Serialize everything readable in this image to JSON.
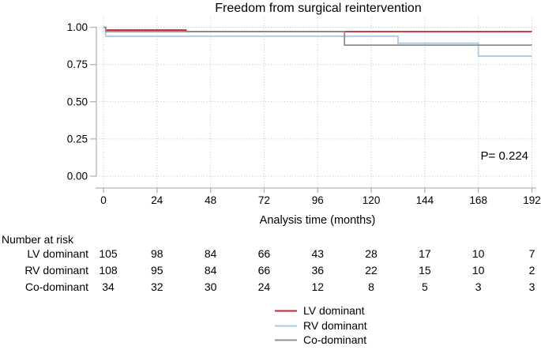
{
  "chart_data": {
    "type": "line",
    "subtype": "kaplan-meier-step",
    "title": "Freedom from surgical reintervention",
    "xlabel": "Analysis time (months)",
    "ylabel": "",
    "xlim": [
      0,
      192
    ],
    "ylim": [
      0.0,
      1.0
    ],
    "xticks": [
      0,
      24,
      48,
      72,
      96,
      120,
      144,
      168,
      192
    ],
    "yticks": [
      "0.00",
      "0.25",
      "0.50",
      "0.75",
      "1.00"
    ],
    "grid": "dotted",
    "legend_position": "bottom-center",
    "annotation": "P= 0.224",
    "series": [
      {
        "name": "LV dominant",
        "color": "#c4262c",
        "steps": [
          [
            0,
            1.0
          ],
          [
            1,
            0.981
          ],
          [
            37,
            0.971
          ],
          [
            192,
            0.971
          ]
        ]
      },
      {
        "name": "RV dominant",
        "color": "#a7cce4",
        "steps": [
          [
            0,
            1.0
          ],
          [
            1,
            0.94
          ],
          [
            132,
            0.893
          ],
          [
            168,
            0.806
          ],
          [
            192,
            0.806
          ]
        ]
      },
      {
        "name": "Co-dominant",
        "color": "#8f8f8f",
        "steps": [
          [
            0,
            1.0
          ],
          [
            1,
            0.971
          ],
          [
            108,
            0.88
          ],
          [
            192,
            0.88
          ]
        ]
      }
    ],
    "risk_table": {
      "header": "Number at risk",
      "times": [
        0,
        24,
        48,
        72,
        96,
        120,
        144,
        168,
        192
      ],
      "rows": [
        {
          "label": "LV dominant",
          "counts": [
            105,
            98,
            84,
            66,
            43,
            28,
            17,
            10,
            7
          ]
        },
        {
          "label": "RV dominant",
          "counts": [
            108,
            95,
            84,
            66,
            36,
            22,
            15,
            10,
            2
          ]
        },
        {
          "label": "Co-dominant",
          "counts": [
            34,
            32,
            30,
            24,
            12,
            8,
            5,
            3,
            3
          ]
        }
      ]
    }
  },
  "colors": {
    "axis": "#b3b3b3",
    "grid": "#c2c2c2",
    "text": "#000000",
    "background": "#ffffff"
  }
}
